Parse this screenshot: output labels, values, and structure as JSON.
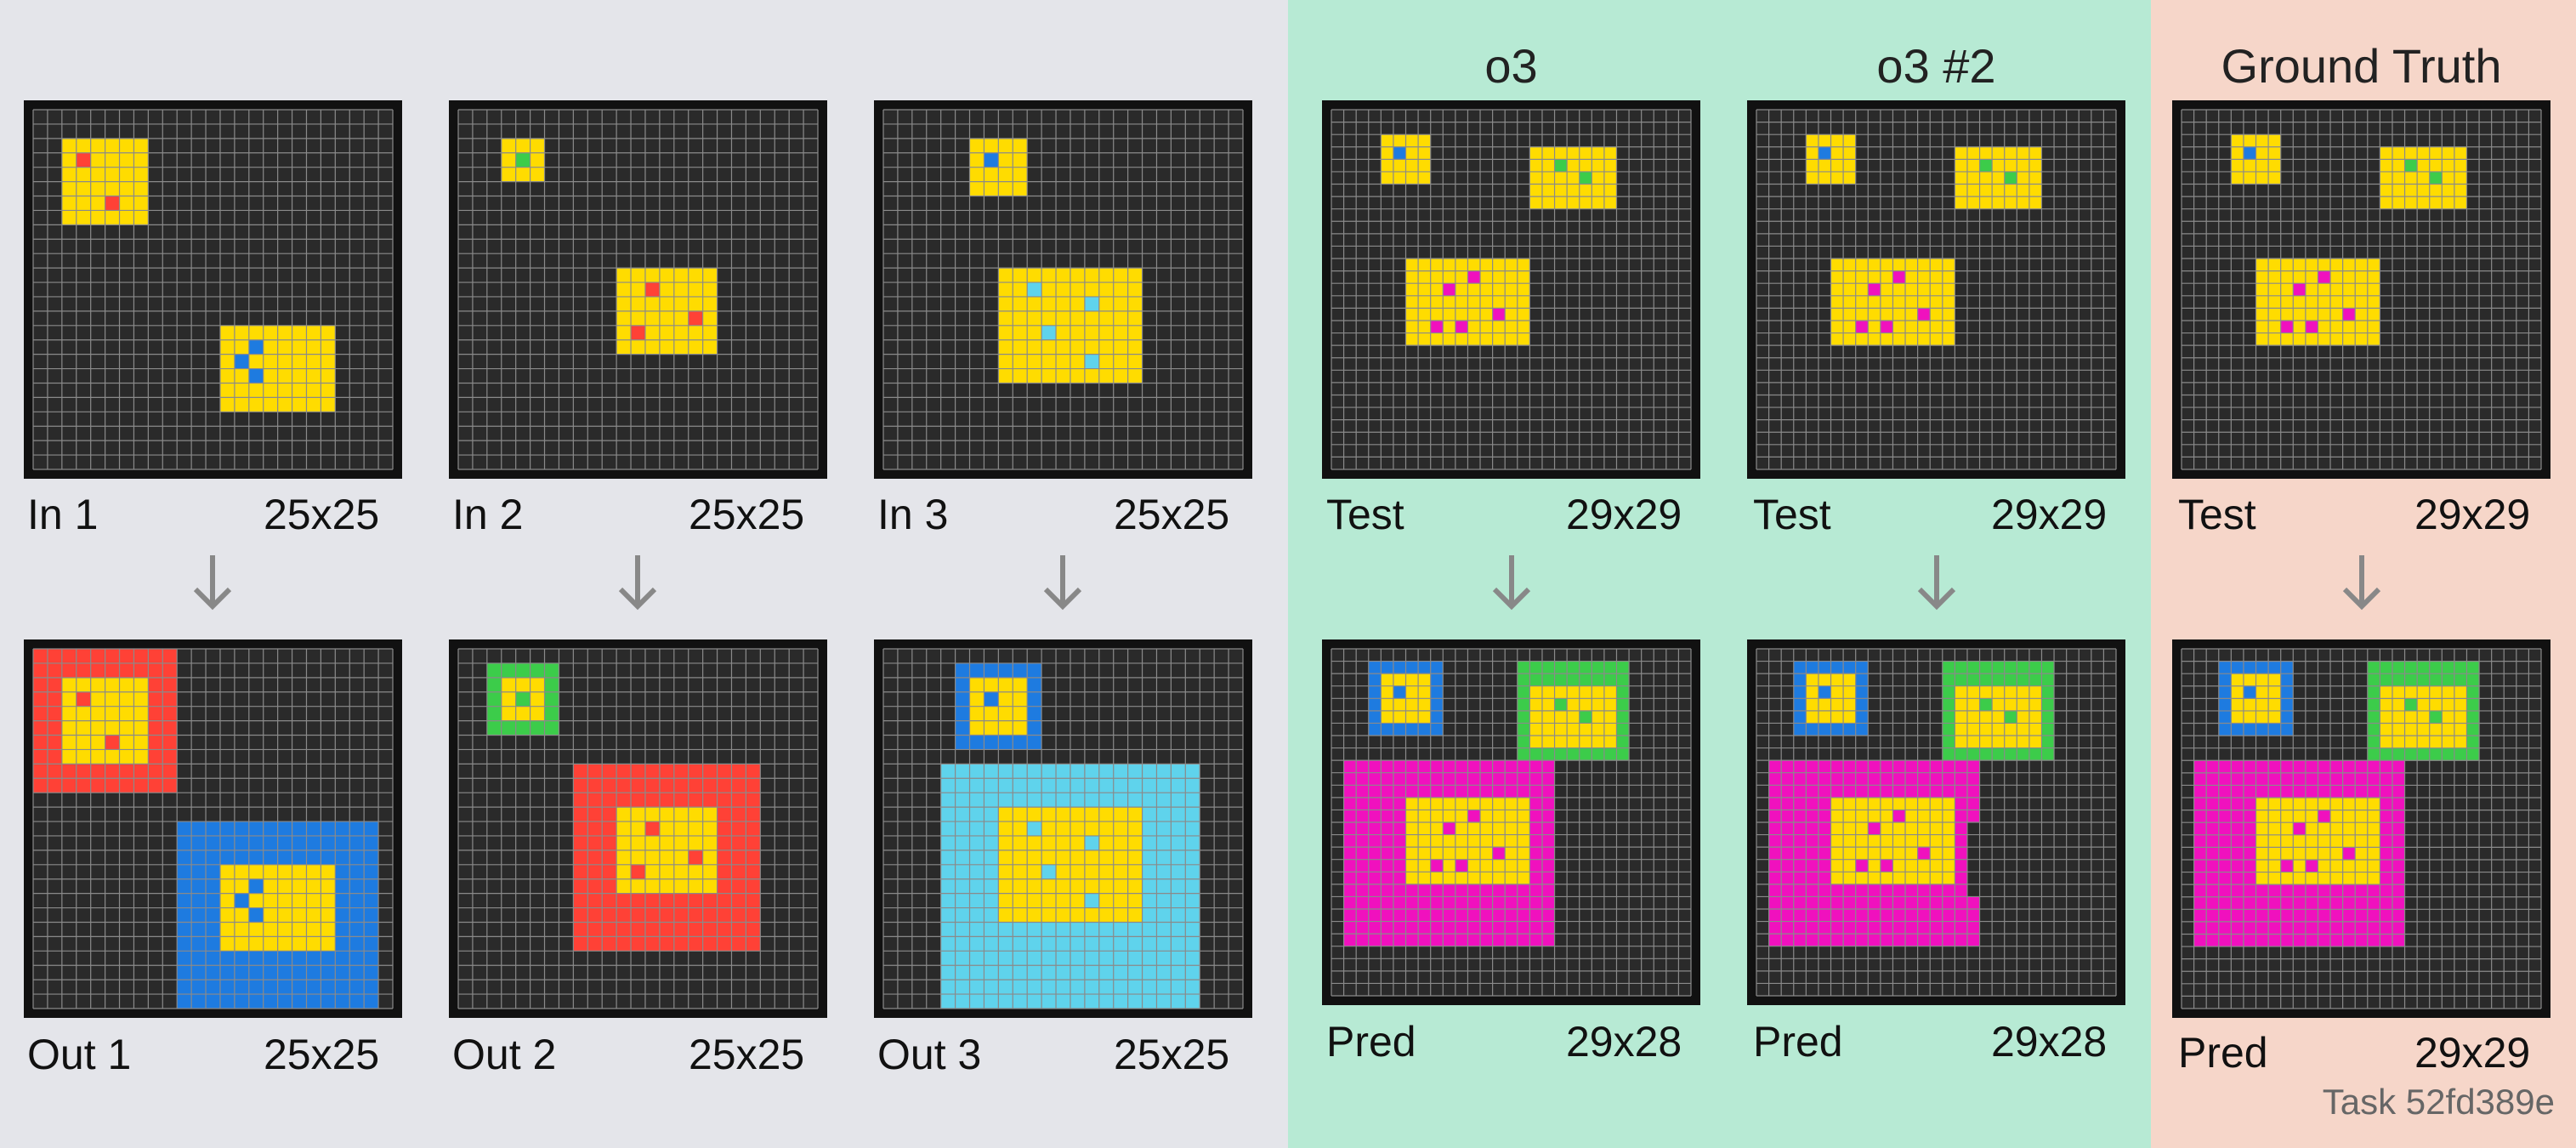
{
  "colors": {
    "train_bg": "#e4e5ea",
    "model_bg": "#b7ead4",
    "truth_bg": "#f6d6c9",
    "grid_bg": "#2a2a2a",
    "grid_line": "#8a8a8a",
    "frame": "#111111",
    "arrow": "#888888",
    "palette": {
      "0": "#2a2a2a",
      "1": "#1e7be0",
      "2": "#ff4136",
      "3": "#3ccc4a",
      "4": "#ffdc00",
      "6": "#f011be",
      "8": "#5fd3ec"
    }
  },
  "headers": {
    "model1": "o3",
    "model2": "o3 #2",
    "truth": "Ground Truth"
  },
  "task_label": "Task 52fd389e",
  "examples": [
    {
      "in_label": "In 1",
      "in_size": "25x25",
      "out_label": "Out 1",
      "out_size": "25x25",
      "input": {
        "w": 25,
        "h": 25,
        "rects": [
          [
            2,
            2,
            7,
            7,
            4
          ],
          [
            13,
            15,
            20,
            20,
            4
          ]
        ],
        "cells": [
          [
            3,
            3,
            2
          ],
          [
            5,
            6,
            2
          ],
          [
            15,
            16,
            1
          ],
          [
            14,
            17,
            1
          ],
          [
            15,
            18,
            1
          ]
        ]
      },
      "output": {
        "w": 25,
        "h": 25,
        "rects": [
          [
            0,
            0,
            9,
            9,
            2
          ],
          [
            10,
            12,
            23,
            24,
            1
          ],
          [
            2,
            2,
            7,
            7,
            4
          ],
          [
            13,
            15,
            20,
            20,
            4
          ]
        ],
        "cells": [
          [
            3,
            3,
            2
          ],
          [
            5,
            6,
            2
          ],
          [
            15,
            16,
            1
          ],
          [
            14,
            17,
            1
          ],
          [
            15,
            18,
            1
          ]
        ]
      }
    },
    {
      "in_label": "In 2",
      "in_size": "25x25",
      "out_label": "Out 2",
      "out_size": "25x25",
      "input": {
        "w": 25,
        "h": 25,
        "rects": [
          [
            3,
            2,
            5,
            4,
            4
          ],
          [
            11,
            11,
            17,
            16,
            4
          ]
        ],
        "cells": [
          [
            4,
            3,
            3
          ],
          [
            13,
            12,
            2
          ],
          [
            16,
            14,
            2
          ],
          [
            12,
            15,
            2
          ]
        ]
      },
      "output": {
        "w": 25,
        "h": 25,
        "rects": [
          [
            2,
            1,
            6,
            5,
            3
          ],
          [
            8,
            8,
            20,
            20,
            2
          ],
          [
            3,
            2,
            5,
            4,
            4
          ],
          [
            11,
            11,
            17,
            16,
            4
          ]
        ],
        "cells": [
          [
            4,
            3,
            3
          ],
          [
            13,
            12,
            2
          ],
          [
            16,
            14,
            2
          ],
          [
            12,
            15,
            2
          ]
        ]
      }
    },
    {
      "in_label": "In 3",
      "in_size": "25x25",
      "out_label": "Out 3",
      "out_size": "25x25",
      "input": {
        "w": 25,
        "h": 25,
        "rects": [
          [
            6,
            2,
            9,
            5,
            4
          ],
          [
            8,
            11,
            17,
            18,
            4
          ]
        ],
        "cells": [
          [
            7,
            3,
            1
          ],
          [
            10,
            12,
            8
          ],
          [
            14,
            13,
            8
          ],
          [
            11,
            15,
            8
          ],
          [
            14,
            17,
            8
          ]
        ]
      },
      "output": {
        "w": 25,
        "h": 25,
        "rects": [
          [
            5,
            1,
            10,
            6,
            1
          ],
          [
            4,
            8,
            21,
            24,
            8
          ],
          [
            6,
            2,
            9,
            5,
            4
          ],
          [
            8,
            11,
            17,
            18,
            4
          ]
        ],
        "cells": [
          [
            7,
            3,
            1
          ],
          [
            10,
            12,
            8
          ],
          [
            14,
            13,
            8
          ],
          [
            11,
            15,
            8
          ],
          [
            14,
            17,
            8
          ]
        ]
      }
    }
  ],
  "tests": [
    {
      "test_label": "Test",
      "test_size": "29x29",
      "pred_label": "Pred",
      "pred_size": "29x28",
      "input": {
        "w": 29,
        "h": 29,
        "rects": [
          [
            4,
            2,
            7,
            5,
            4
          ],
          [
            16,
            3,
            22,
            7,
            4
          ],
          [
            6,
            12,
            15,
            18,
            4
          ]
        ],
        "cells": [
          [
            5,
            3,
            1
          ],
          [
            18,
            4,
            3
          ],
          [
            20,
            5,
            3
          ],
          [
            9,
            14,
            6
          ],
          [
            11,
            13,
            6
          ],
          [
            13,
            16,
            6
          ],
          [
            8,
            17,
            6
          ],
          [
            10,
            17,
            6
          ]
        ]
      },
      "output": {
        "w": 29,
        "h": 28,
        "rects": [
          [
            3,
            1,
            8,
            6,
            1
          ],
          [
            15,
            1,
            23,
            8,
            3
          ],
          [
            1,
            9,
            17,
            23,
            6
          ],
          [
            4,
            2,
            7,
            5,
            4
          ],
          [
            16,
            3,
            22,
            7,
            4
          ],
          [
            6,
            12,
            15,
            18,
            4
          ]
        ],
        "cells": [
          [
            5,
            3,
            1
          ],
          [
            18,
            4,
            3
          ],
          [
            20,
            5,
            3
          ],
          [
            9,
            14,
            6
          ],
          [
            11,
            13,
            6
          ],
          [
            13,
            16,
            6
          ],
          [
            8,
            17,
            6
          ],
          [
            10,
            17,
            6
          ]
        ]
      }
    },
    {
      "test_label": "Test",
      "test_size": "29x29",
      "pred_label": "Pred",
      "pred_size": "29x28",
      "input": {
        "w": 29,
        "h": 29,
        "rects": [
          [
            4,
            2,
            7,
            5,
            4
          ],
          [
            16,
            3,
            22,
            7,
            4
          ],
          [
            6,
            12,
            15,
            18,
            4
          ]
        ],
        "cells": [
          [
            5,
            3,
            1
          ],
          [
            18,
            4,
            3
          ],
          [
            20,
            5,
            3
          ],
          [
            9,
            14,
            6
          ],
          [
            11,
            13,
            6
          ],
          [
            13,
            16,
            6
          ],
          [
            8,
            17,
            6
          ],
          [
            10,
            17,
            6
          ]
        ]
      },
      "output": {
        "w": 29,
        "h": 28,
        "rects": [
          [
            3,
            1,
            8,
            6,
            1
          ],
          [
            15,
            1,
            23,
            8,
            3
          ],
          [
            1,
            9,
            17,
            23,
            6
          ],
          [
            4,
            2,
            7,
            5,
            4
          ],
          [
            16,
            3,
            22,
            7,
            4
          ],
          [
            6,
            12,
            15,
            18,
            4
          ]
        ],
        "cells": [
          [
            5,
            3,
            1
          ],
          [
            18,
            4,
            3
          ],
          [
            20,
            5,
            3
          ],
          [
            9,
            14,
            6
          ],
          [
            11,
            13,
            6
          ],
          [
            13,
            16,
            6
          ],
          [
            8,
            17,
            6
          ],
          [
            10,
            17,
            6
          ]
        ],
        "erase": [
          [
            17,
            14,
            17,
            19,
            0
          ]
        ]
      }
    },
    {
      "test_label": "Test",
      "test_size": "29x29",
      "pred_label": "Pred",
      "pred_size": "29x29",
      "input": {
        "w": 29,
        "h": 29,
        "rects": [
          [
            4,
            2,
            7,
            5,
            4
          ],
          [
            16,
            3,
            22,
            7,
            4
          ],
          [
            6,
            12,
            15,
            18,
            4
          ]
        ],
        "cells": [
          [
            5,
            3,
            1
          ],
          [
            18,
            4,
            3
          ],
          [
            20,
            5,
            3
          ],
          [
            9,
            14,
            6
          ],
          [
            11,
            13,
            6
          ],
          [
            13,
            16,
            6
          ],
          [
            8,
            17,
            6
          ],
          [
            10,
            17,
            6
          ]
        ]
      },
      "output": {
        "w": 29,
        "h": 29,
        "rects": [
          [
            3,
            1,
            8,
            6,
            1
          ],
          [
            15,
            1,
            23,
            8,
            3
          ],
          [
            1,
            9,
            17,
            23,
            6
          ],
          [
            4,
            2,
            7,
            5,
            4
          ],
          [
            16,
            3,
            22,
            7,
            4
          ],
          [
            6,
            12,
            15,
            18,
            4
          ]
        ],
        "cells": [
          [
            5,
            3,
            1
          ],
          [
            18,
            4,
            3
          ],
          [
            20,
            5,
            3
          ],
          [
            9,
            14,
            6
          ],
          [
            11,
            13,
            6
          ],
          [
            13,
            16,
            6
          ],
          [
            8,
            17,
            6
          ],
          [
            10,
            17,
            6
          ]
        ]
      }
    }
  ]
}
